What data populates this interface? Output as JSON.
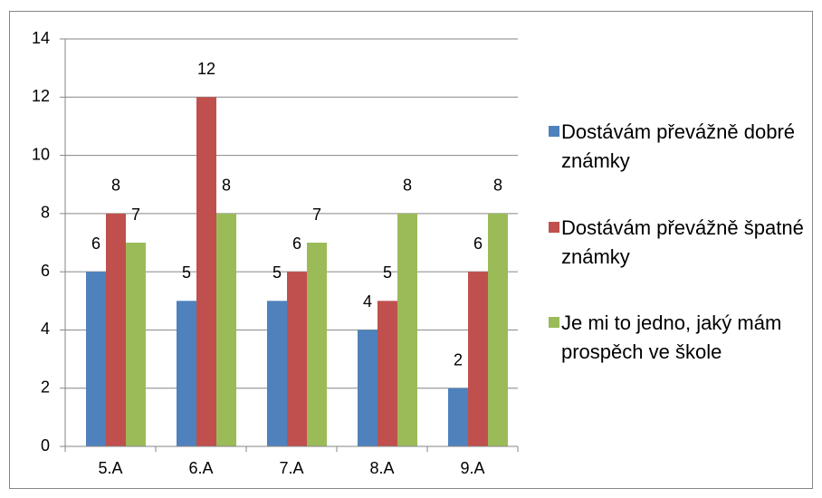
{
  "chart_data": {
    "type": "bar",
    "categories": [
      "5.A",
      "6.A",
      "7.A",
      "8.A",
      "9.A"
    ],
    "series": [
      {
        "name": "Dostávám převážně dobré známky",
        "color": "#4f81bd",
        "values": [
          6,
          5,
          5,
          4,
          2
        ]
      },
      {
        "name": "Dostávám převážně špatné známky",
        "color": "#c0504d",
        "values": [
          8,
          12,
          6,
          5,
          6
        ]
      },
      {
        "name": "Je mi to jedno, jaký mám prospěch ve škole",
        "color": "#9bbb59",
        "values": [
          7,
          8,
          7,
          8,
          8
        ]
      }
    ],
    "ylim": [
      0,
      14
    ],
    "yticks": [
      0,
      2,
      4,
      6,
      8,
      10,
      12,
      14
    ],
    "grid": true,
    "legend": "right"
  }
}
